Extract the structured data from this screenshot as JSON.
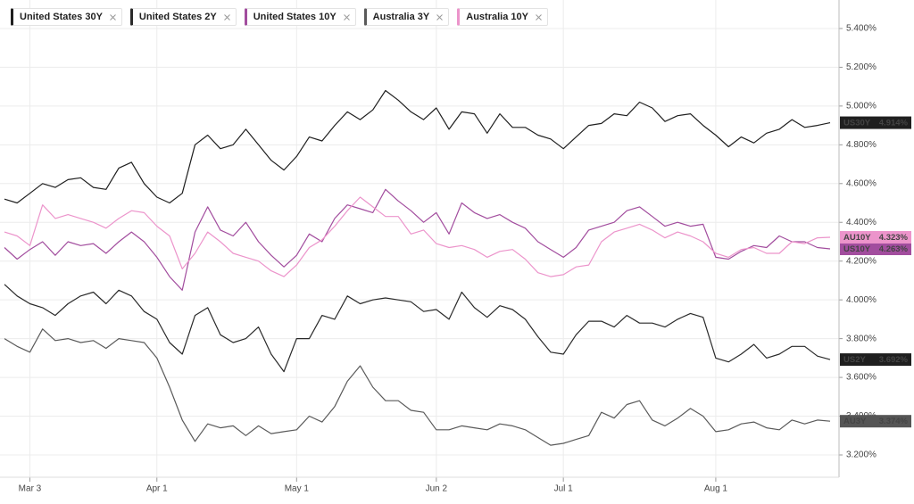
{
  "chart_data": {
    "type": "line",
    "categories": [
      null,
      null,
      "Mar 3",
      null,
      null,
      null,
      null,
      null,
      null,
      null,
      null,
      null,
      "Apr 1",
      null,
      null,
      null,
      null,
      null,
      null,
      null,
      null,
      null,
      null,
      "May 1",
      null,
      null,
      null,
      null,
      null,
      null,
      null,
      null,
      null,
      null,
      "Jun 2",
      null,
      null,
      null,
      null,
      null,
      null,
      null,
      null,
      null,
      "Jul 1",
      null,
      null,
      null,
      null,
      null,
      null,
      null,
      null,
      null,
      null,
      null,
      "Aug 1",
      null,
      null,
      null,
      null,
      null,
      null,
      null,
      null,
      null
    ],
    "ylim": [
      3.085,
      5.547
    ],
    "yticks": [
      {
        "value": 3.2,
        "label": "3.200%"
      },
      {
        "value": 3.4,
        "label": "3.400%"
      },
      {
        "value": 3.6,
        "label": "3.600%"
      },
      {
        "value": 3.8,
        "label": "3.800%"
      },
      {
        "value": 4.0,
        "label": "4.000%"
      },
      {
        "value": 4.2,
        "label": "4.200%"
      },
      {
        "value": 4.4,
        "label": "4.400%"
      },
      {
        "value": 4.6,
        "label": "4.600%"
      },
      {
        "value": 4.8,
        "label": "4.800%"
      },
      {
        "value": 5.0,
        "label": "5.000%"
      },
      {
        "value": 5.2,
        "label": "5.200%"
      },
      {
        "value": 5.4,
        "label": "5.400%"
      }
    ],
    "grid": true,
    "legend": "top-left",
    "series": [
      {
        "name": "United States 30Y",
        "end_label": "US30Y",
        "end_value_label": "4.914%",
        "color": "#1f1f1f",
        "label_bg": "#1f1f1f",
        "label_fg": "#ffffff",
        "values": [
          4.52,
          4.5,
          4.55,
          4.6,
          4.58,
          4.62,
          4.63,
          4.58,
          4.57,
          4.68,
          4.71,
          4.6,
          4.53,
          4.5,
          4.55,
          4.8,
          4.85,
          4.78,
          4.8,
          4.88,
          4.8,
          4.72,
          4.67,
          4.74,
          4.84,
          4.82,
          4.9,
          4.97,
          4.93,
          4.98,
          5.08,
          5.03,
          4.97,
          4.93,
          4.99,
          4.88,
          4.97,
          4.96,
          4.86,
          4.96,
          4.89,
          4.89,
          4.85,
          4.83,
          4.78,
          4.84,
          4.9,
          4.91,
          4.96,
          4.95,
          5.02,
          4.99,
          4.92,
          4.95,
          4.96,
          4.9,
          4.85,
          4.79,
          4.84,
          4.81,
          4.86,
          4.88,
          4.93,
          4.89,
          4.9,
          4.914
        ]
      },
      {
        "name": "United States 2Y",
        "end_label": "US2Y",
        "end_value_label": "3.692%",
        "color": "#2a2a2a",
        "label_bg": "#1f1f1f",
        "label_fg": "#ffffff",
        "values": [
          4.08,
          4.02,
          3.98,
          3.96,
          3.92,
          3.98,
          4.02,
          4.04,
          3.98,
          4.05,
          4.02,
          3.94,
          3.9,
          3.78,
          3.72,
          3.92,
          3.96,
          3.82,
          3.78,
          3.8,
          3.86,
          3.72,
          3.63,
          3.8,
          3.8,
          3.92,
          3.9,
          4.02,
          3.98,
          4.0,
          4.01,
          4.0,
          3.99,
          3.94,
          3.95,
          3.9,
          4.04,
          3.96,
          3.91,
          3.97,
          3.95,
          3.9,
          3.81,
          3.73,
          3.72,
          3.82,
          3.89,
          3.89,
          3.86,
          3.92,
          3.88,
          3.88,
          3.86,
          3.9,
          3.93,
          3.91,
          3.7,
          3.68,
          3.72,
          3.77,
          3.7,
          3.72,
          3.76,
          3.76,
          3.71,
          3.692
        ]
      },
      {
        "name": "United States 10Y",
        "end_label": "US10Y",
        "end_value_label": "4.263%",
        "color": "#a24d9e",
        "label_bg": "#a24d9e",
        "label_fg": "#ffffff",
        "values": [
          4.27,
          4.21,
          4.26,
          4.3,
          4.23,
          4.3,
          4.28,
          4.29,
          4.24,
          4.3,
          4.35,
          4.3,
          4.22,
          4.12,
          4.05,
          4.35,
          4.48,
          4.36,
          4.33,
          4.4,
          4.3,
          4.23,
          4.17,
          4.23,
          4.34,
          4.3,
          4.42,
          4.49,
          4.47,
          4.45,
          4.57,
          4.51,
          4.46,
          4.4,
          4.45,
          4.34,
          4.5,
          4.45,
          4.42,
          4.44,
          4.4,
          4.37,
          4.3,
          4.26,
          4.22,
          4.27,
          4.36,
          4.38,
          4.4,
          4.46,
          4.48,
          4.43,
          4.38,
          4.4,
          4.38,
          4.39,
          4.22,
          4.21,
          4.25,
          4.28,
          4.27,
          4.33,
          4.3,
          4.3,
          4.27,
          4.263
        ]
      },
      {
        "name": "Australia 3Y",
        "end_label": "AU3Y",
        "end_value_label": "3.374%",
        "color": "#5a5a5a",
        "label_bg": "#555555",
        "label_fg": "#ffffff",
        "values": [
          3.8,
          3.76,
          3.73,
          3.85,
          3.79,
          3.8,
          3.78,
          3.79,
          3.75,
          3.8,
          3.79,
          3.78,
          3.7,
          3.55,
          3.38,
          3.27,
          3.36,
          3.34,
          3.35,
          3.3,
          3.35,
          3.31,
          3.32,
          3.33,
          3.4,
          3.37,
          3.45,
          3.58,
          3.66,
          3.55,
          3.48,
          3.48,
          3.43,
          3.42,
          3.33,
          3.33,
          3.35,
          3.34,
          3.33,
          3.36,
          3.35,
          3.33,
          3.29,
          3.25,
          3.26,
          3.28,
          3.3,
          3.42,
          3.39,
          3.46,
          3.48,
          3.38,
          3.35,
          3.39,
          3.44,
          3.4,
          3.32,
          3.33,
          3.36,
          3.37,
          3.34,
          3.33,
          3.38,
          3.36,
          3.38,
          3.374
        ]
      },
      {
        "name": "Australia 10Y",
        "end_label": "AU10Y",
        "end_value_label": "4.323%",
        "color": "#ec94cb",
        "label_bg": "#ec94cb",
        "label_fg": "#1f1f1f",
        "values": [
          4.35,
          4.33,
          4.28,
          4.49,
          4.42,
          4.44,
          4.42,
          4.4,
          4.37,
          4.42,
          4.46,
          4.45,
          4.38,
          4.33,
          4.16,
          4.24,
          4.35,
          4.3,
          4.24,
          4.22,
          4.2,
          4.15,
          4.12,
          4.18,
          4.27,
          4.31,
          4.38,
          4.46,
          4.53,
          4.48,
          4.43,
          4.43,
          4.34,
          4.36,
          4.29,
          4.27,
          4.28,
          4.26,
          4.22,
          4.25,
          4.26,
          4.21,
          4.14,
          4.12,
          4.13,
          4.17,
          4.18,
          4.3,
          4.35,
          4.37,
          4.39,
          4.36,
          4.32,
          4.35,
          4.33,
          4.3,
          4.24,
          4.22,
          4.26,
          4.27,
          4.24,
          4.24,
          4.3,
          4.29,
          4.32,
          4.323
        ]
      }
    ]
  }
}
